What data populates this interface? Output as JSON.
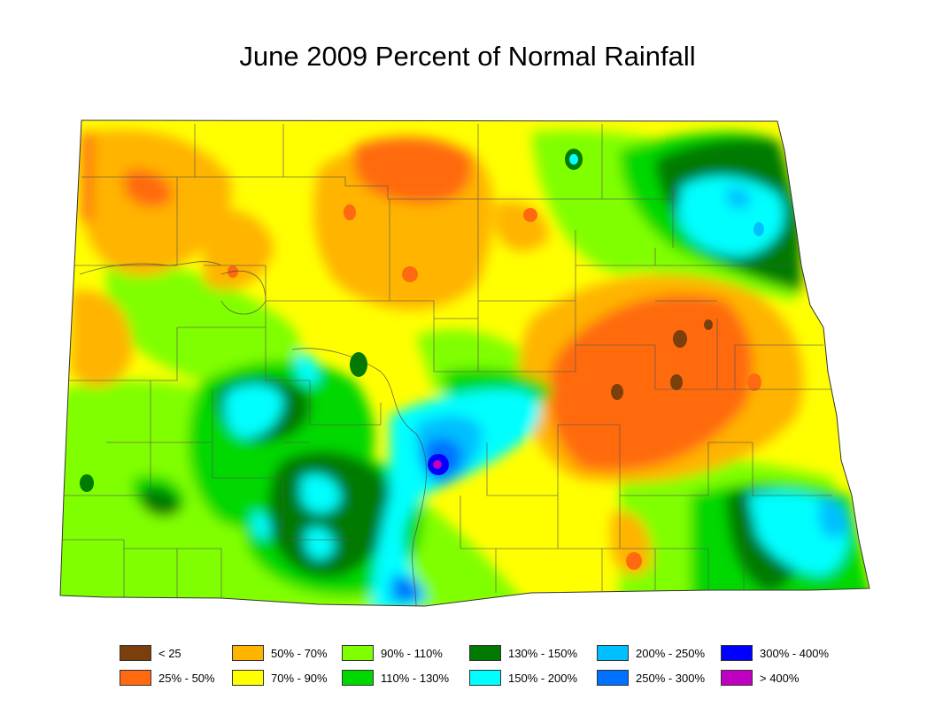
{
  "title": "June 2009 Percent of Normal Rainfall",
  "legend": [
    {
      "label": "< 25",
      "color": "#7a3f0a"
    },
    {
      "label": "25% - 50%",
      "color": "#ff6a10"
    },
    {
      "label": "50% - 70%",
      "color": "#ffb400"
    },
    {
      "label": "70% - 90%",
      "color": "#ffff00"
    },
    {
      "label": "90% - 110%",
      "color": "#80ff00"
    },
    {
      "label": "110% - 130%",
      "color": "#00d800"
    },
    {
      "label": "130% - 150%",
      "color": "#007a00"
    },
    {
      "label": "150% - 200%",
      "color": "#00ffff"
    },
    {
      "label": "200% - 250%",
      "color": "#00bfff"
    },
    {
      "label": "250% - 300%",
      "color": "#0070ff"
    },
    {
      "label": "300% - 400%",
      "color": "#0000ff"
    },
    {
      "label": "> 400%",
      "color": "#c000c0"
    }
  ]
}
